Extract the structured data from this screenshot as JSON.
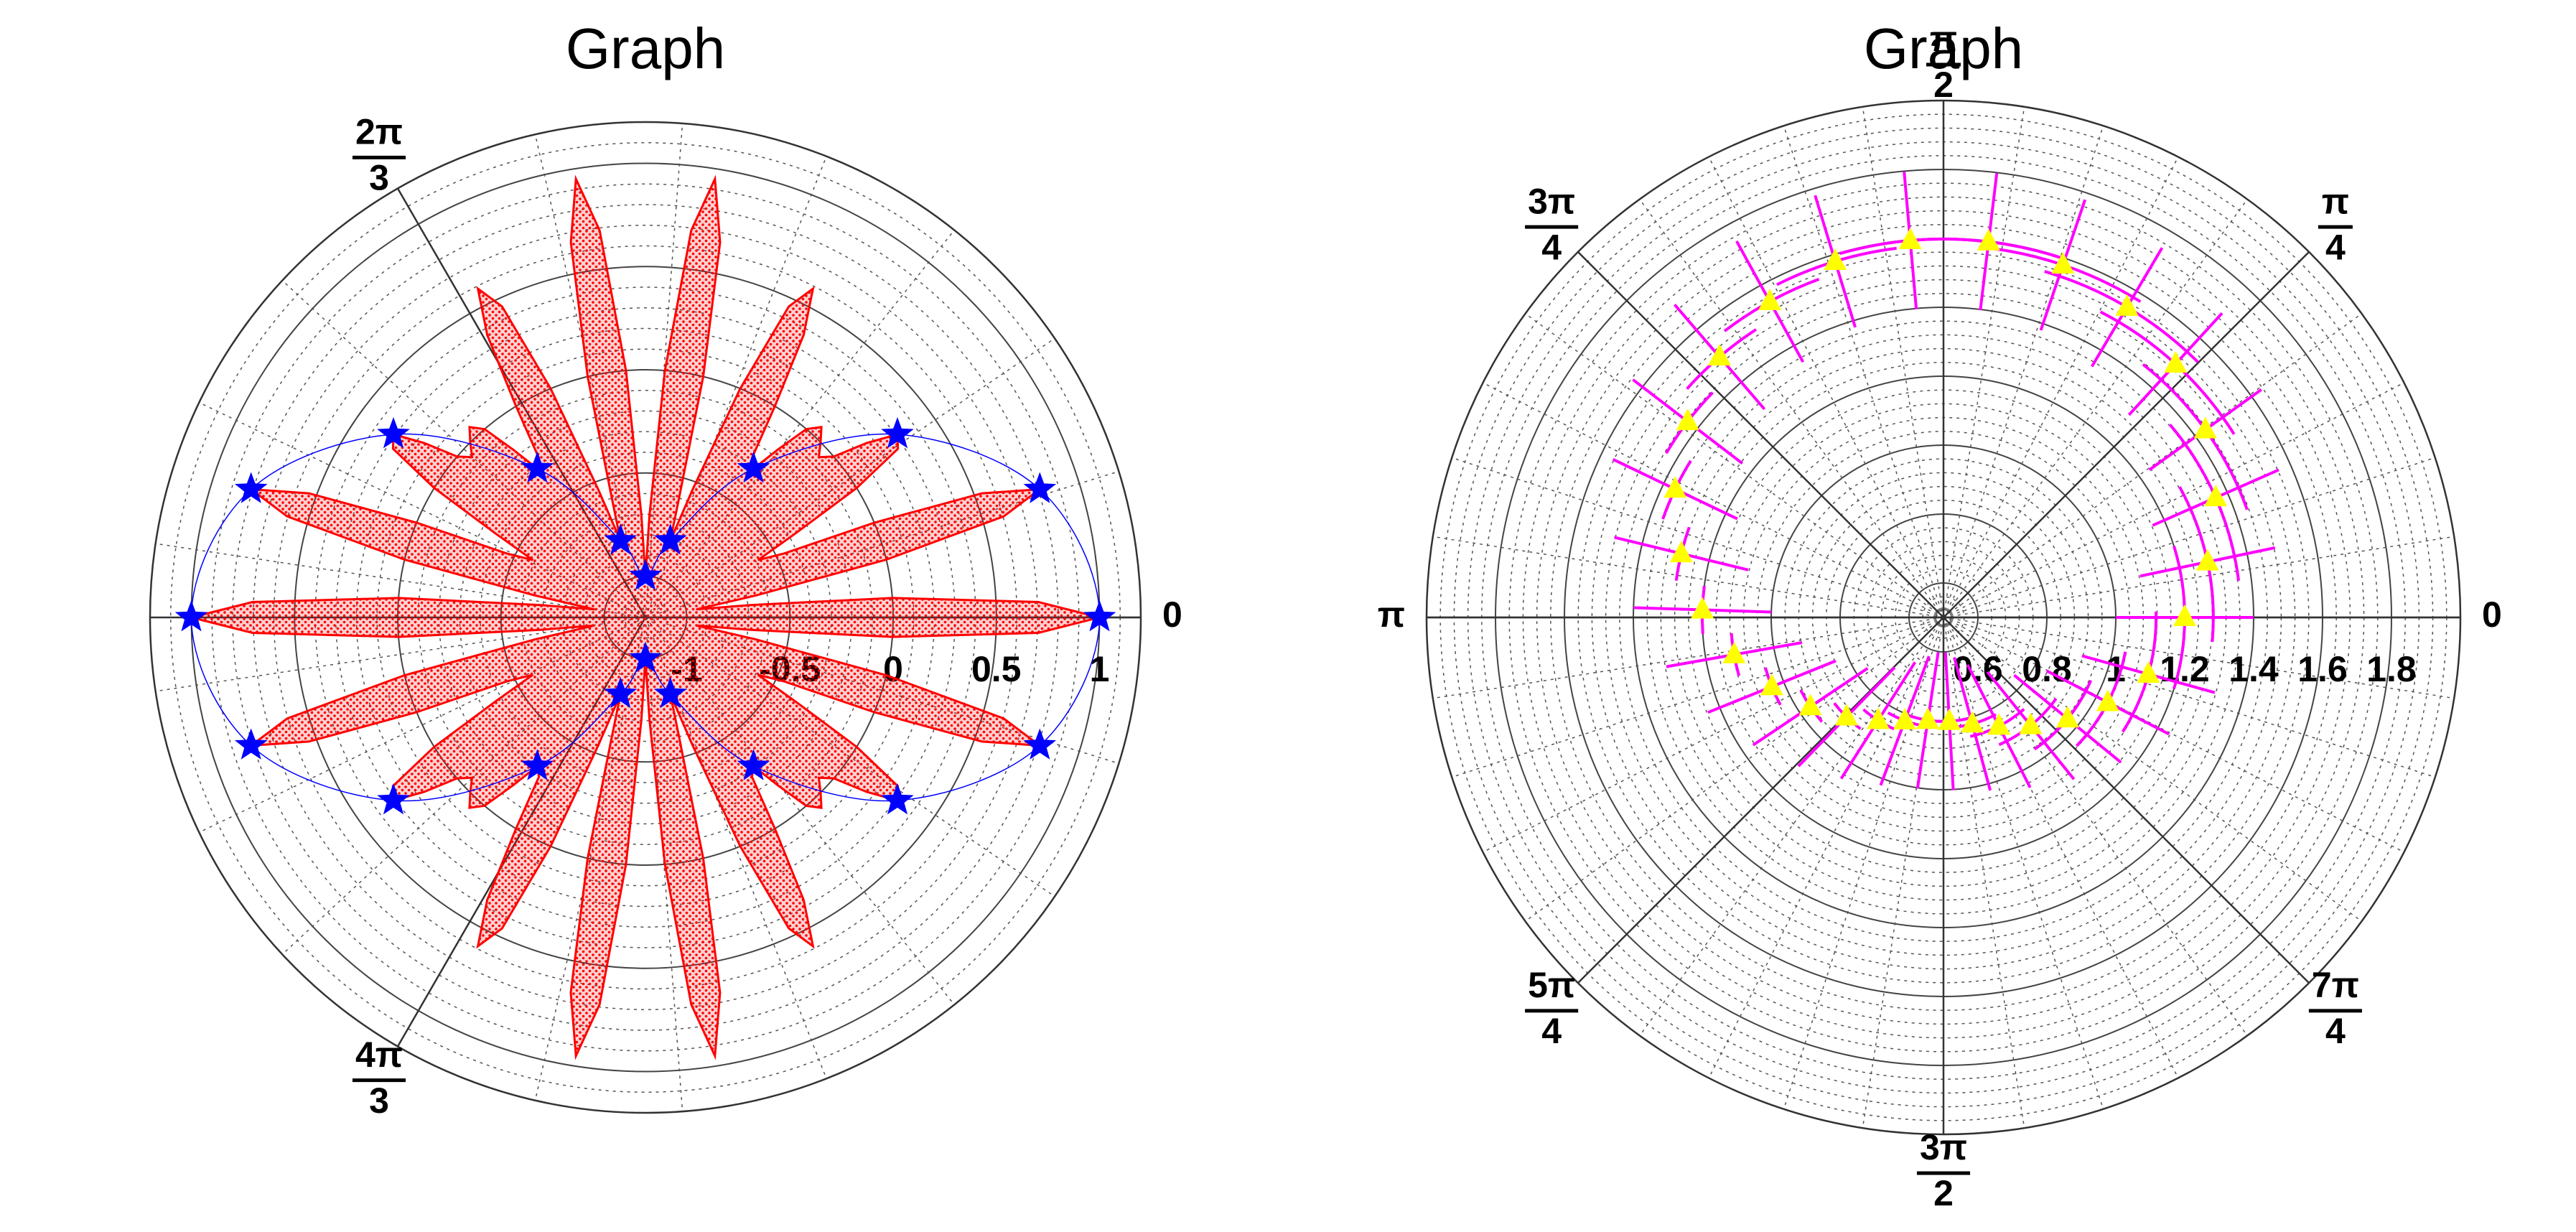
{
  "chart_data": [
    {
      "type": "polar",
      "title": "Graph",
      "xlim": [
        0,
        6.2832
      ],
      "xticks": [
        0,
        {
          "value": 2.0944,
          "label": [
            "2π",
            "3"
          ]
        },
        {
          "value": 4.1888,
          "label": [
            "4π",
            "3"
          ]
        }
      ],
      "ylim": [
        -1.2,
        1.2
      ],
      "yticks": [
        -1,
        -0.5,
        0,
        0.5,
        1
      ],
      "grid": true,
      "series": [
        {
          "style": "fill-line",
          "color": "#ff0000",
          "fill": "hatch",
          "x": [
            0,
            0.0393,
            0.0785,
            0.1178,
            0.1571,
            0.1963,
            0.2356,
            0.2749,
            0.3142,
            0.3534,
            0.3927,
            0.432,
            0.4712,
            0.5105,
            0.5498,
            0.589,
            0.6283,
            0.6676,
            0.7069,
            0.7461,
            0.7854,
            0.8247,
            0.8639,
            0.9032,
            0.9425,
            0.9817,
            1.021,
            1.0603,
            1.0996,
            1.1388,
            1.1781,
            1.2174,
            1.2566,
            1.2959,
            1.3352,
            1.3744,
            1.4137,
            1.453,
            1.4923,
            1.5315,
            1.5708,
            1.6101,
            1.6493,
            1.6886,
            1.7279,
            1.7671,
            1.8064,
            1.8457,
            1.885,
            1.9242,
            1.9635,
            2.0028,
            2.042,
            2.0813,
            2.1206,
            2.1598,
            2.1991,
            2.2384,
            2.2777,
            2.3169,
            2.3562,
            2.3955,
            2.4347,
            2.474,
            2.5133,
            2.5525,
            2.5918,
            2.6311,
            2.6704,
            2.7096,
            2.7489,
            2.7882,
            2.8274,
            2.8667,
            2.906,
            2.9452,
            2.9845,
            3.0238,
            3.0631,
            3.1023,
            3.1416,
            3.1809,
            3.2201,
            3.2594,
            3.2987,
            3.3379,
            3.3772,
            3.4165,
            3.4558,
            3.495,
            3.5343,
            3.5736,
            3.6128,
            3.6521,
            3.6914,
            3.7306,
            3.7699,
            3.8092,
            3.8485,
            3.8877,
            3.927,
            3.9663,
            4.0055,
            4.0448,
            4.0841,
            4.1233,
            4.1626,
            4.2019,
            4.2412,
            4.2804,
            4.3197,
            4.359,
            4.3982,
            4.4375,
            4.4768,
            4.516,
            4.5553,
            4.5946,
            4.6339,
            4.6731,
            4.7124,
            4.7517,
            4.7909,
            4.8302,
            4.8695,
            4.9087,
            4.948,
            4.9873,
            5.0265,
            5.0658,
            5.1051,
            5.1444,
            5.1836,
            5.2229,
            5.2622,
            5.3014,
            5.3407,
            5.38,
            5.4192,
            5.4585,
            5.4978,
            5.5371,
            5.5763,
            5.6156,
            5.6549,
            5.6941,
            5.7334,
            5.7727,
            5.8119,
            5.8512,
            5.8905,
            5.9298,
            5.969,
            6.0083,
            6.0476,
            6.0868,
            6.1261,
            6.1654,
            6.2046,
            6.2439
          ],
          "values": [
            1,
            0.705,
            0,
            -0.688,
            -0.951,
            -0.653,
            0,
            0.603,
            0.809,
            0.538,
            0,
            -0.459,
            -0.588,
            -0.369,
            0,
            0.271,
            0.309,
            0.165,
            0,
            -0.056,
            0,
            0.056,
            0,
            -0.165,
            -0.309,
            -0.271,
            0,
            0.369,
            0.588,
            0.459,
            0,
            -0.538,
            -0.809,
            -0.603,
            0,
            0.653,
            0.951,
            0.688,
            0,
            -0.705,
            -1,
            -0.705,
            0,
            0.688,
            0.951,
            0.653,
            0,
            -0.603,
            -0.809,
            -0.538,
            0,
            0.459,
            0.588,
            0.369,
            0,
            -0.271,
            -0.309,
            -0.165,
            0,
            0.056,
            0,
            -0.056,
            0,
            0.165,
            0.309,
            0.271,
            0,
            -0.369,
            -0.588,
            -0.459,
            0,
            0.538,
            0.809,
            0.603,
            0,
            -0.653,
            -0.951,
            -0.688,
            0,
            0.705,
            1,
            0.705,
            0,
            -0.688,
            -0.951,
            -0.653,
            0,
            0.603,
            0.809,
            0.538,
            0,
            -0.459,
            -0.588,
            -0.369,
            0,
            0.271,
            0.309,
            0.165,
            0,
            -0.056,
            0,
            0.056,
            0,
            -0.165,
            -0.309,
            -0.271,
            0,
            0.369,
            0.588,
            0.459,
            0,
            -0.538,
            -0.809,
            -0.603,
            0,
            0.653,
            0.951,
            0.688,
            0,
            -0.705,
            -1,
            -0.705,
            0,
            0.688,
            0.951,
            0.653,
            0,
            -0.603,
            -0.809,
            -0.538,
            0,
            0.459,
            0.588,
            0.369,
            0,
            -0.271,
            -0.309,
            -0.165,
            0,
            0.056,
            0,
            -0.056,
            0,
            0.165,
            0.309,
            0.271,
            0,
            -0.369,
            -0.588,
            -0.459,
            0,
            0.538,
            0.809,
            0.603,
            0,
            -0.653,
            -0.951,
            -0.688,
            0,
            0.705
          ]
        },
        {
          "style": "smooth-markers",
          "color": "#0000ff",
          "marker": "star",
          "x": [
            0,
            0.3142,
            0.6283,
            0.9425,
            1.2566,
            1.5708,
            1.885,
            2.1991,
            2.5133,
            2.8274,
            3.1416,
            3.4558,
            3.7699,
            4.0841,
            4.3982,
            4.7124,
            5.0265,
            5.3407,
            5.6549,
            5.969
          ],
          "values": [
            1,
            0.809,
            0.309,
            -0.309,
            -0.809,
            -1,
            -0.809,
            -0.309,
            0.309,
            0.809,
            1,
            0.809,
            0.309,
            -0.309,
            -0.809,
            -1,
            -0.809,
            -0.309,
            0.309,
            0.809
          ]
        }
      ]
    },
    {
      "type": "polar",
      "title": "Graph",
      "xlim": [
        0,
        6.2832
      ],
      "xticks": [
        0,
        {
          "value": 0.7854,
          "label": [
            "π",
            "4"
          ]
        },
        {
          "value": 1.5708,
          "label": [
            "π",
            "2"
          ]
        },
        {
          "value": 2.3562,
          "label": [
            "3π",
            "4"
          ]
        },
        {
          "value": 3.1416,
          "label": "π"
        },
        {
          "value": 3.927,
          "label": [
            "5π",
            "4"
          ]
        },
        {
          "value": 4.7124,
          "label": [
            "3π",
            "2"
          ]
        },
        {
          "value": 5.4978,
          "label": [
            "7π",
            "4"
          ]
        }
      ],
      "ylim": [
        0.5,
        2
      ],
      "yticks": [
        0.6,
        0.8,
        1,
        1.2,
        1.4,
        1.6,
        1.8
      ],
      "grid": true,
      "series": [
        {
          "style": "error-markers",
          "color": "#ffff00",
          "line_color": "#ff00ff",
          "marker": "triangle",
          "x": [
            0,
            0.2073,
            0.4147,
            0.622,
            0.8294,
            1.0367,
            1.2441,
            1.4514,
            1.6588,
            1.8661,
            2.0735,
            2.2808,
            2.4881,
            2.6955,
            2.9028,
            3.1102,
            3.3175,
            3.5249,
            3.7322,
            3.9396,
            4.1469,
            4.3542,
            4.5616,
            4.7689,
            4.9763,
            5.1836,
            5.391,
            5.5983,
            5.8057,
            6.013
          ],
          "values": [
            1.2,
            1.283,
            1.363,
            1.435,
            1.497,
            1.546,
            1.58,
            1.598,
            1.598,
            1.58,
            1.546,
            1.497,
            1.435,
            1.363,
            1.283,
            1.2,
            1.117,
            1.037,
            0.965,
            0.903,
            0.854,
            0.82,
            0.802,
            0.802,
            0.82,
            0.854,
            0.903,
            0.965,
            1.037,
            1.117
          ],
          "x_errors": [
            0.3,
            0.298,
            0.291,
            0.281,
            0.267,
            0.25,
            0.231,
            0.21,
            0.19,
            0.169,
            0.15,
            0.133,
            0.119,
            0.109,
            0.102,
            0.1,
            0.102,
            0.109,
            0.119,
            0.133,
            0.15,
            0.169,
            0.19,
            0.21,
            0.231,
            0.25,
            0.267,
            0.281,
            0.291,
            0.298
          ],
          "errors": [
            0.2,
            0.2,
            0.2,
            0.2,
            0.2,
            0.2,
            0.2,
            0.2,
            0.2,
            0.2,
            0.2,
            0.2,
            0.2,
            0.2,
            0.2,
            0.2,
            0.2,
            0.2,
            0.2,
            0.2,
            0.2,
            0.2,
            0.2,
            0.2,
            0.2,
            0.2,
            0.2,
            0.2,
            0.2,
            0.2
          ]
        }
      ]
    }
  ]
}
